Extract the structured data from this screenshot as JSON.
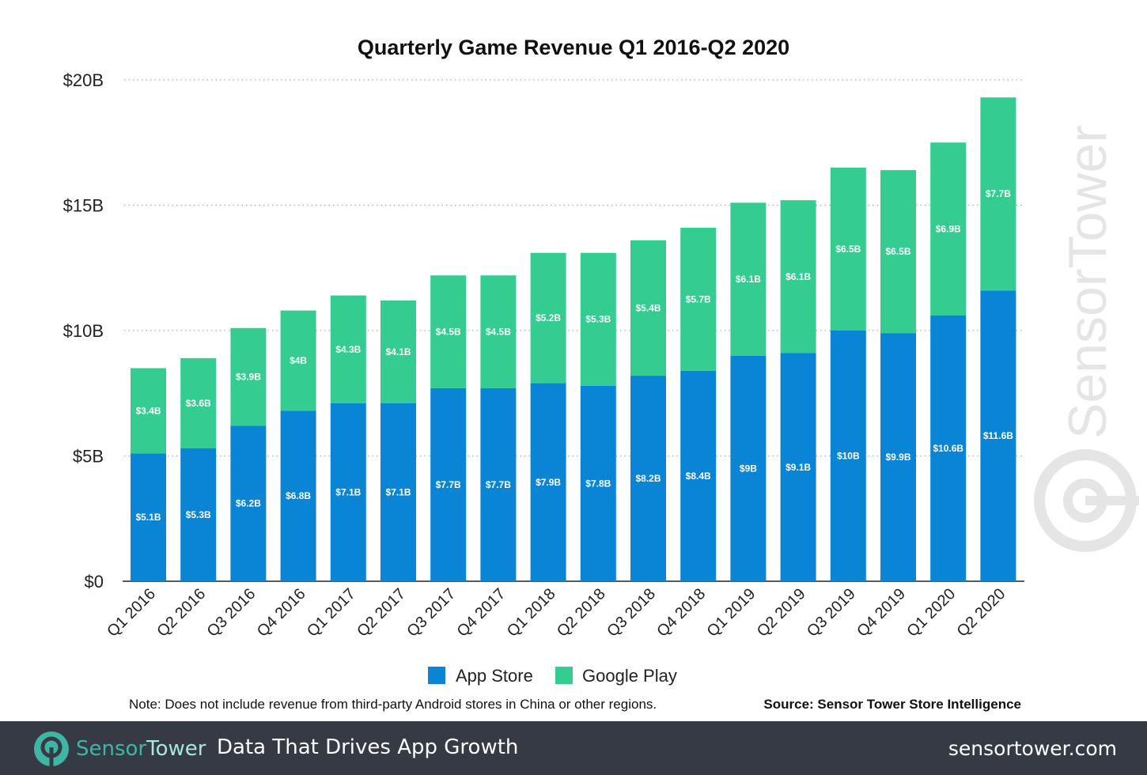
{
  "chart_data": {
    "type": "bar",
    "stacked": true,
    "title": "Quarterly Game Revenue Q1 2016-Q2 2020",
    "categories": [
      "Q1 2016",
      "Q2 2016",
      "Q3 2016",
      "Q4 2016",
      "Q1 2017",
      "Q2 2017",
      "Q3 2017",
      "Q4 2017",
      "Q1 2018",
      "Q2 2018",
      "Q3 2018",
      "Q4 2018",
      "Q1 2019",
      "Q2 2019",
      "Q3 2019",
      "Q4 2019",
      "Q1 2020",
      "Q2 2020"
    ],
    "series": [
      {
        "name": "App Store",
        "color": "#0a85d6",
        "values": [
          5.1,
          5.3,
          6.2,
          6.8,
          7.1,
          7.1,
          7.7,
          7.7,
          7.9,
          7.8,
          8.2,
          8.4,
          9,
          9.1,
          10,
          9.9,
          10.6,
          11.6
        ],
        "labels": [
          "$5.1B",
          "$5.3B",
          "$6.2B",
          "$6.8B",
          "$7.1B",
          "$7.1B",
          "$7.7B",
          "$7.7B",
          "$7.9B",
          "$7.8B",
          "$8.2B",
          "$8.4B",
          "$9B",
          "$9.1B",
          "$10B",
          "$9.9B",
          "$10.6B",
          "$11.6B"
        ]
      },
      {
        "name": "Google Play",
        "color": "#34cc91",
        "values": [
          3.4,
          3.6,
          3.9,
          4,
          4.3,
          4.1,
          4.5,
          4.5,
          5.2,
          5.3,
          5.4,
          5.7,
          6.1,
          6.1,
          6.5,
          6.5,
          6.9,
          7.7
        ],
        "labels": [
          "$3.4B",
          "$3.6B",
          "$3.9B",
          "$4B",
          "$4.3B",
          "$4.1B",
          "$4.5B",
          "$4.5B",
          "$5.2B",
          "$5.3B",
          "$5.4B",
          "$5.7B",
          "$6.1B",
          "$6.1B",
          "$6.5B",
          "$6.5B",
          "$6.9B",
          "$7.7B"
        ]
      }
    ],
    "ylim": [
      0,
      20
    ],
    "yticks": [
      0,
      5,
      10,
      15,
      20
    ],
    "ytick_labels": [
      "$0",
      "$5B",
      "$10B",
      "$15B",
      "$20B"
    ],
    "grid": true,
    "legend_position": "bottom",
    "note": "Note: Does not include revenue from third-party Android stores in China or other regions.",
    "source": "Source: Sensor Tower Store Intelligence",
    "watermark": "SensorTower"
  },
  "footer": {
    "brand_a": "Sensor",
    "brand_b": "Tower",
    "tagline": "Data That Drives App Growth",
    "site": "sensortower.com"
  }
}
